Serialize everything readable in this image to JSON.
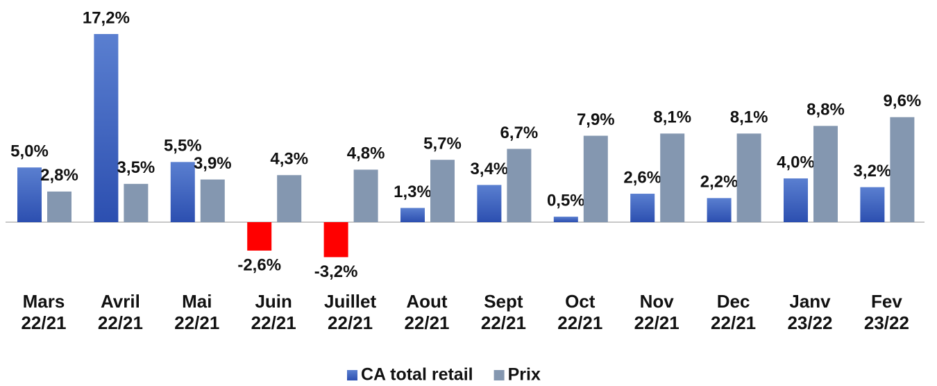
{
  "chart_data": {
    "type": "bar",
    "categories": [
      [
        "Mars",
        "22/21"
      ],
      [
        "Avril",
        "22/21"
      ],
      [
        "Mai",
        "22/21"
      ],
      [
        "Juin",
        "22/21"
      ],
      [
        "Juillet",
        "22/21"
      ],
      [
        "Aout",
        "22/21"
      ],
      [
        "Sept",
        "22/21"
      ],
      [
        "Oct",
        "22/21"
      ],
      [
        "Nov",
        "22/21"
      ],
      [
        "Dec",
        "22/21"
      ],
      [
        "Janv",
        "23/22"
      ],
      [
        "Fev",
        "23/22"
      ]
    ],
    "series": [
      {
        "name": "CA total retail",
        "color": "#3b5fc0",
        "negative_color": "#ff0000",
        "values": [
          5.0,
          17.2,
          5.5,
          -2.6,
          -3.2,
          1.3,
          3.4,
          0.5,
          2.6,
          2.2,
          4.0,
          3.2
        ],
        "value_labels": [
          "5,0%",
          "17,2%",
          "5,5%",
          "-2,6%",
          "-3,2%",
          "1,3%",
          "3,4%",
          "0,5%",
          "2,6%",
          "2,2%",
          "4,0%",
          "3,2%"
        ]
      },
      {
        "name": "Prix",
        "color": "#8497b0",
        "values": [
          2.8,
          3.5,
          3.9,
          4.3,
          4.8,
          5.7,
          6.7,
          7.9,
          8.1,
          8.1,
          8.8,
          9.6
        ],
        "value_labels": [
          "2,8%",
          "3,5%",
          "3,9%",
          "4,3%",
          "4,8%",
          "5,7%",
          "6,7%",
          "7,9%",
          "8,1%",
          "8,1%",
          "8,8%",
          "9,6%"
        ]
      }
    ],
    "legend": "bottom"
  }
}
